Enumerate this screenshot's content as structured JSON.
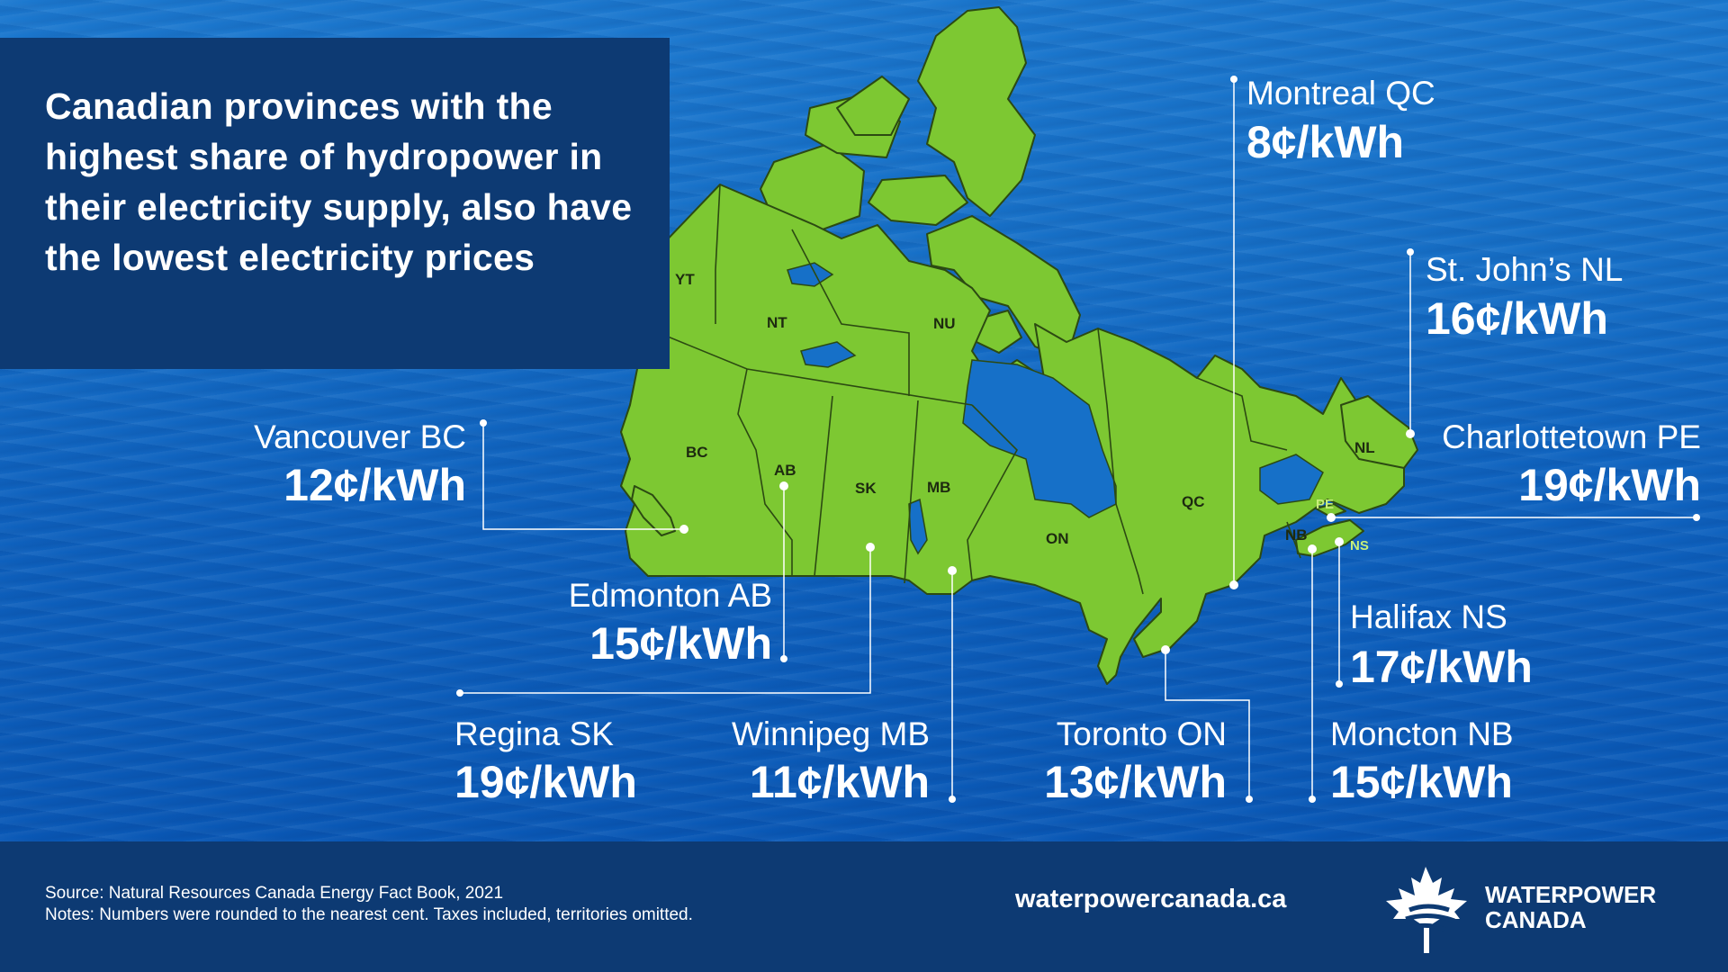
{
  "title": "Canadian provinces with the highest share of hydropower in their electricity supply, also have the lowest electricity prices",
  "provinces": {
    "yt": "YT",
    "nt": "NT",
    "nu": "NU",
    "bc": "BC",
    "ab": "AB",
    "sk": "SK",
    "mb": "MB",
    "on": "ON",
    "qc": "QC",
    "nl": "NL",
    "nb": "NB",
    "pe": "PE",
    "ns": "NS"
  },
  "cities": {
    "vancouver": {
      "name": "Vancouver BC",
      "price": "12¢/kWh"
    },
    "edmonton": {
      "name": "Edmonton AB",
      "price": "15¢/kWh"
    },
    "regina": {
      "name": "Regina SK",
      "price": "19¢/kWh"
    },
    "winnipeg": {
      "name": "Winnipeg MB",
      "price": "11¢/kWh"
    },
    "toronto": {
      "name": "Toronto ON",
      "price": "13¢/kWh"
    },
    "montreal": {
      "name": "Montreal QC",
      "price": "8¢/kWh"
    },
    "stjohns": {
      "name": "St. John’s NL",
      "price": "16¢/kWh"
    },
    "charlottetown": {
      "name": "Charlottetown PE",
      "price": "19¢/kWh"
    },
    "halifax": {
      "name": "Halifax NS",
      "price": "17¢/kWh"
    },
    "moncton": {
      "name": "Moncton NB",
      "price": "15¢/kWh"
    }
  },
  "footer": {
    "source": "Source: Natural Resources Canada Energy Fact Book, 2021",
    "notes": "Notes: Numbers were rounded to the nearest cent. Taxes included, territories omitted.",
    "website": "waterpowercanada.ca",
    "logo_line1": "WATERPOWER",
    "logo_line2": "CANADA"
  },
  "colors": {
    "land": "#7dc832",
    "sea": "#1670c8",
    "panel": "#0d3a73",
    "text": "#ffffff"
  },
  "icons": {
    "logo": "maple-leaf-wave-icon"
  }
}
